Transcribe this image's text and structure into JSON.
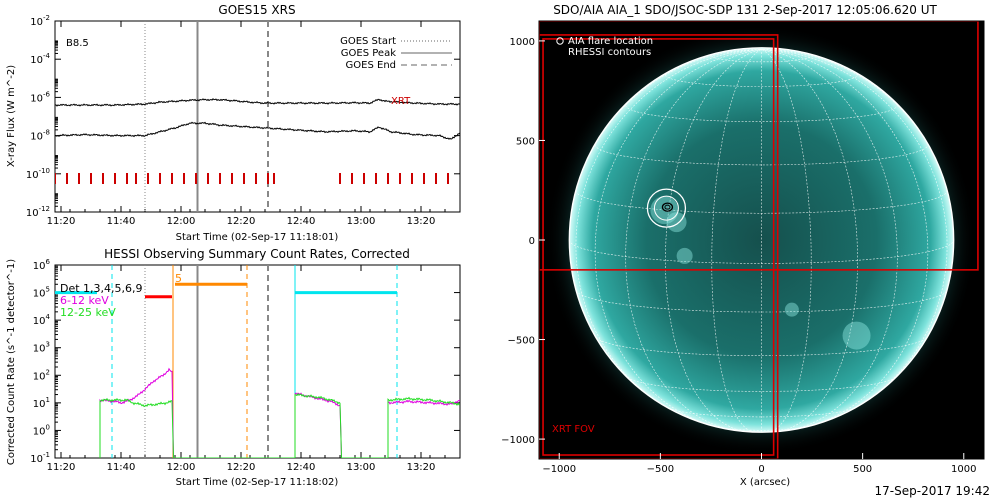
{
  "chart_data": [
    {
      "type": "line",
      "title": "GOES15 XRS",
      "ylabel": "X-ray Flux (W m^-2)",
      "xlabel": "Start Time (02-Sep-17 11:18:01)",
      "ylog": true,
      "ylim_exp": [
        -12,
        -2
      ],
      "ytick_exps": [
        -12,
        -10,
        -8,
        -6,
        -4,
        -2
      ],
      "xlim_min": [
        0,
        135
      ],
      "xticks": [
        {
          "min": 2,
          "label": "11:20"
        },
        {
          "min": 22,
          "label": "11:40"
        },
        {
          "min": 42,
          "label": "12:00"
        },
        {
          "min": 62,
          "label": "12:20"
        },
        {
          "min": 82,
          "label": "12:40"
        },
        {
          "min": 102,
          "label": "13:00"
        },
        {
          "min": 122,
          "label": "13:20"
        }
      ],
      "annotation": "B8.5",
      "legend": [
        {
          "label": "GOES Start",
          "style": "dotted"
        },
        {
          "label": "GOES Peak",
          "style": "solid"
        },
        {
          "label": "GOES End",
          "style": "dashed"
        }
      ],
      "legend_placement": "top-right",
      "markers": {
        "start": 30,
        "peak": 47.5,
        "end": 71
      },
      "xrt_label": "XRT",
      "xrt_color": "#cc0000",
      "xrt_ticks_min": [
        0,
        4,
        8,
        12,
        16,
        20,
        24,
        27,
        31,
        35,
        39,
        43,
        47,
        51,
        55,
        59,
        63,
        67,
        71,
        73,
        95,
        99,
        103,
        107,
        111,
        115,
        119,
        123,
        127,
        131
      ],
      "series": [
        {
          "color": "#000000",
          "points": [
            [
              0,
              -6.4
            ],
            [
              10,
              -6.4
            ],
            [
              20,
              -6.4
            ],
            [
              30,
              -6.35
            ],
            [
              35,
              -6.25
            ],
            [
              40,
              -6.2
            ],
            [
              45,
              -6.15
            ],
            [
              50,
              -6.12
            ],
            [
              55,
              -6.12
            ],
            [
              60,
              -6.18
            ],
            [
              65,
              -6.25
            ],
            [
              70,
              -6.3
            ],
            [
              80,
              -6.3
            ],
            [
              90,
              -6.3
            ],
            [
              100,
              -6.28
            ],
            [
              105,
              -6.3
            ],
            [
              108,
              -6.1
            ],
            [
              110,
              -6.2
            ],
            [
              120,
              -6.3
            ],
            [
              128,
              -6.35
            ],
            [
              135,
              -6.35
            ]
          ]
        },
        {
          "color": "#000000",
          "points": [
            [
              0,
              -8.0
            ],
            [
              10,
              -7.95
            ],
            [
              20,
              -8.0
            ],
            [
              30,
              -8.0
            ],
            [
              35,
              -7.8
            ],
            [
              40,
              -7.6
            ],
            [
              45,
              -7.35
            ],
            [
              50,
              -7.35
            ],
            [
              55,
              -7.45
            ],
            [
              60,
              -7.5
            ],
            [
              65,
              -7.55
            ],
            [
              70,
              -7.6
            ],
            [
              80,
              -7.7
            ],
            [
              90,
              -7.8
            ],
            [
              100,
              -7.75
            ],
            [
              105,
              -7.8
            ],
            [
              108,
              -7.55
            ],
            [
              112,
              -7.8
            ],
            [
              120,
              -7.95
            ],
            [
              128,
              -8.0
            ],
            [
              132,
              -8.2
            ],
            [
              135,
              -7.85
            ]
          ]
        }
      ]
    },
    {
      "type": "line",
      "title": "HESSI Observing Summary Count Rates, Corrected",
      "ylabel": "Corrected Count Rate (s^-1 detector^-1)",
      "xlabel": "Start Time (02-Sep-17 11:18:02)",
      "ylog": true,
      "ylim_exp": [
        -1,
        6
      ],
      "ytick_exps": [
        -1,
        0,
        1,
        2,
        3,
        4,
        5,
        6
      ],
      "xlim_min": [
        0,
        135
      ],
      "xticks": [
        {
          "min": 2,
          "label": "11:20"
        },
        {
          "min": 22,
          "label": "11:40"
        },
        {
          "min": 42,
          "label": "12:00"
        },
        {
          "min": 62,
          "label": "12:20"
        },
        {
          "min": 82,
          "label": "12:40"
        },
        {
          "min": 102,
          "label": "13:00"
        },
        {
          "min": 122,
          "label": "13:20"
        }
      ],
      "legend": [
        {
          "label": "Det 1,3,4,5,6,9",
          "color": "#000000"
        },
        {
          "label": "6-12 keV",
          "color": "#e000e0"
        },
        {
          "label": "12-25 keV",
          "color": "#22dd22"
        }
      ],
      "legend_placement": "top-left",
      "markers": {
        "start": 30,
        "peak": 47.5,
        "end": 71
      },
      "attenuator_label": "5",
      "attenuator_color": "#ff8800",
      "attenuator_state_min": [
        [
          40,
          64
        ]
      ],
      "attenuator_level_exp": 5.3,
      "red_bar": {
        "min": [
          30,
          39
        ],
        "level_exp": 4.85,
        "color": "#ff0000"
      },
      "saa_color": "#00e5ee",
      "saa_intervals_min": [
        [
          0,
          14
        ],
        [
          80,
          114
        ]
      ],
      "saa_level_exp": 5.0,
      "saa_lines_min": [
        19,
        80,
        114
      ],
      "series": [
        {
          "name": "6-12 keV",
          "color": "#e000e0",
          "points": [
            [
              15,
              -1
            ],
            [
              15,
              1.1
            ],
            [
              20,
              1.05
            ],
            [
              22,
              1.0
            ],
            [
              25,
              1.1
            ],
            [
              28,
              1.3
            ],
            [
              31,
              1.6
            ],
            [
              33,
              1.8
            ],
            [
              36,
              2.0
            ],
            [
              38,
              2.2
            ],
            [
              39,
              2.1
            ],
            [
              39.5,
              -1
            ],
            [
              80,
              -1
            ],
            [
              80,
              1.35
            ],
            [
              84,
              1.25
            ],
            [
              88,
              1.15
            ],
            [
              92,
              1.05
            ],
            [
              95,
              0.9
            ],
            [
              95.5,
              -1
            ],
            [
              111,
              -1
            ],
            [
              111,
              1.0
            ],
            [
              118,
              1.05
            ],
            [
              125,
              1.0
            ],
            [
              132,
              0.95
            ],
            [
              135,
              1.1
            ]
          ]
        },
        {
          "name": "12-25 keV",
          "color": "#22dd22",
          "points": [
            [
              15,
              -1
            ],
            [
              15,
              1.1
            ],
            [
              20,
              1.1
            ],
            [
              24,
              1.1
            ],
            [
              26,
              1.0
            ],
            [
              30,
              0.9
            ],
            [
              34,
              0.95
            ],
            [
              37,
              1.0
            ],
            [
              39,
              1.05
            ],
            [
              39.5,
              -1
            ],
            [
              80,
              -1
            ],
            [
              80,
              1.3
            ],
            [
              84,
              1.25
            ],
            [
              88,
              1.2
            ],
            [
              92,
              1.1
            ],
            [
              95,
              1.0
            ],
            [
              95.5,
              -1
            ],
            [
              111,
              -1
            ],
            [
              111,
              1.1
            ],
            [
              118,
              1.15
            ],
            [
              125,
              1.1
            ],
            [
              132,
              1.0
            ],
            [
              135,
              0.95
            ]
          ]
        }
      ]
    },
    {
      "type": "image",
      "title": "SDO/AIA AIA_1 SDO/JSOC-SDP 131  2-Sep-2017 12:05:06.620 UT",
      "xlabel": "X (arcsec)",
      "xlim": [
        -1100,
        1100
      ],
      "ylim": [
        -1100,
        1100
      ],
      "xticks": [
        -1000,
        -500,
        0,
        500,
        1000
      ],
      "yticks": [
        -1000,
        -500,
        0,
        500,
        1000
      ],
      "solar_radius_arcsec": 950,
      "grid_spacing_deg": 15,
      "legend": [
        "AIA flare location",
        "RHESSI contours"
      ],
      "flare_location_arcsec": [
        -470,
        160
      ],
      "xrt_fov_label": "XRT FOV",
      "xrt_fov_color": "#dd0000",
      "xrt_boxes": [
        {
          "x": [
            -1100,
            80
          ],
          "y": [
            -1100,
            1030
          ]
        },
        {
          "x": [
            -1080,
            60
          ],
          "y": [
            -1080,
            1010
          ]
        },
        {
          "x": [
            -1100,
            1070
          ],
          "y": [
            -150,
            1100
          ]
        }
      ],
      "colormap": [
        "#000000",
        "#0a3d3b",
        "#1f8f89",
        "#3fc7c0",
        "#b5f3ee"
      ]
    }
  ],
  "footer_timestamp": "17-Sep-2017 19:42"
}
